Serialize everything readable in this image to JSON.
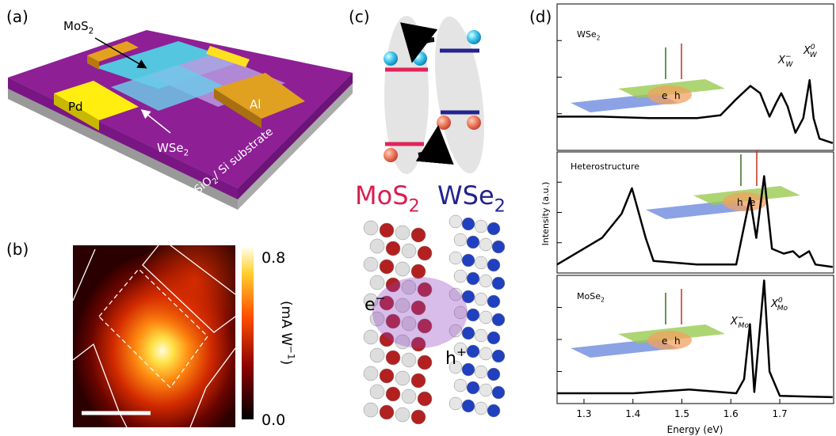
{
  "panels": {
    "a": {
      "label": "(a)",
      "mos2": {
        "text": "MoS",
        "sub": "2"
      },
      "pd": "Pd",
      "al": "Al",
      "wse2": {
        "text": "WSe",
        "sub": "2"
      },
      "substrate": {
        "text": "SiO",
        "sub": "2",
        "rest": "/ Si substrate"
      }
    },
    "b": {
      "label": "(b)",
      "colorbar": {
        "clim": [
          0,
          0.85
        ],
        "ticks": [
          0.8,
          {
            "value": 0,
            "label": "0.0"
          }
        ],
        "unit": {
          "text": "(mA W",
          "sup": "−1",
          "end": ")"
        }
      }
    },
    "c": {
      "label": "(c)",
      "mos2": {
        "text": "MoS",
        "sub": "2"
      },
      "wse2": {
        "text": "WSe",
        "sub": "2"
      },
      "electron": {
        "text": "e",
        "sup": "−"
      },
      "hole": {
        "text": "h",
        "sup": "+"
      }
    },
    "d": {
      "label": "(d)"
    }
  },
  "chart_data": {
    "type": "line",
    "xlabel": "Energy (eV)",
    "ylabel": "Intensity (a.u.)",
    "xlim": [
      1.245,
      1.81
    ],
    "xticks": [
      1.3,
      1.4,
      1.5,
      1.6,
      1.7
    ],
    "panels": [
      {
        "name": {
          "text": "WSe",
          "sub": "2"
        },
        "ylim": [
          0,
          1
        ],
        "x": [
          1.245,
          1.337,
          1.434,
          1.531,
          1.579,
          1.611,
          1.64,
          1.66,
          1.679,
          1.692,
          1.703,
          1.716,
          1.732,
          1.748,
          1.761,
          1.769,
          1.781,
          1.808
        ],
        "values": [
          0.23,
          0.23,
          0.22,
          0.22,
          0.24,
          0.35,
          0.44,
          0.39,
          0.23,
          0.32,
          0.39,
          0.3,
          0.12,
          0.22,
          0.48,
          0.22,
          0.08,
          0.05
        ],
        "annotations": [
          {
            "text": "X",
            "sup": "−",
            "sub": "W"
          },
          {
            "text": "X",
            "sup": "0",
            "sub": "W"
          }
        ],
        "inset": [
          "e",
          "h"
        ]
      },
      {
        "name": "Heterostructure",
        "ylim": [
          0,
          1
        ],
        "x": [
          1.245,
          1.337,
          1.377,
          1.398,
          1.426,
          1.442,
          1.531,
          1.611,
          1.639,
          1.652,
          1.668,
          1.684,
          1.708,
          1.727,
          1.74,
          1.76,
          1.773,
          1.808
        ],
        "values": [
          0.07,
          0.29,
          0.49,
          0.7,
          0.29,
          0.1,
          0.07,
          0.07,
          0.62,
          0.29,
          0.8,
          0.2,
          0.16,
          0.18,
          0.13,
          0.18,
          0.07,
          0.05
        ],
        "annotations": [],
        "inset": [
          "h",
          "e"
        ]
      },
      {
        "name": {
          "text": "MoSe",
          "sub": "2"
        },
        "ylim": [
          0,
          1
        ],
        "x": [
          1.245,
          1.401,
          1.515,
          1.611,
          1.627,
          1.639,
          1.648,
          1.668,
          1.679,
          1.7,
          1.808
        ],
        "values": [
          0.08,
          0.08,
          0.11,
          0.08,
          0.19,
          0.62,
          0.09,
          0.96,
          0.25,
          0.06,
          0.05
        ],
        "annotations": [
          {
            "text": "X",
            "sup": "−",
            "sub": "Mo"
          },
          {
            "text": "X",
            "sup": "0",
            "sub": "Mo"
          }
        ],
        "inset": [
          "e",
          "h"
        ]
      }
    ]
  }
}
